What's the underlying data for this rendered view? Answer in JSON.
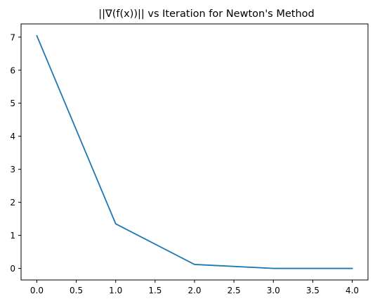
{
  "chart_data": {
    "type": "line",
    "title": "||∇(f(x))|| vs Iteration for Newton's Method",
    "xlabel": "",
    "ylabel": "",
    "x": [
      0,
      1,
      2,
      3,
      4
    ],
    "series": [
      {
        "values": [
          7.04,
          1.35,
          0.12,
          0.0,
          0.0
        ],
        "color": "#1f77b4"
      }
    ],
    "xlim": [
      -0.2,
      4.2
    ],
    "ylim": [
      -0.35,
      7.4
    ],
    "xticks": [
      0.0,
      0.5,
      1.0,
      1.5,
      2.0,
      2.5,
      3.0,
      3.5,
      4.0
    ],
    "xtick_labels": [
      "0.0",
      "0.5",
      "1.0",
      "1.5",
      "2.0",
      "2.5",
      "3.0",
      "3.5",
      "4.0"
    ],
    "yticks": [
      0,
      1,
      2,
      3,
      4,
      5,
      6,
      7
    ],
    "ytick_labels": [
      "0",
      "1",
      "2",
      "3",
      "4",
      "5",
      "6",
      "7"
    ],
    "grid": false,
    "legend": "none"
  }
}
